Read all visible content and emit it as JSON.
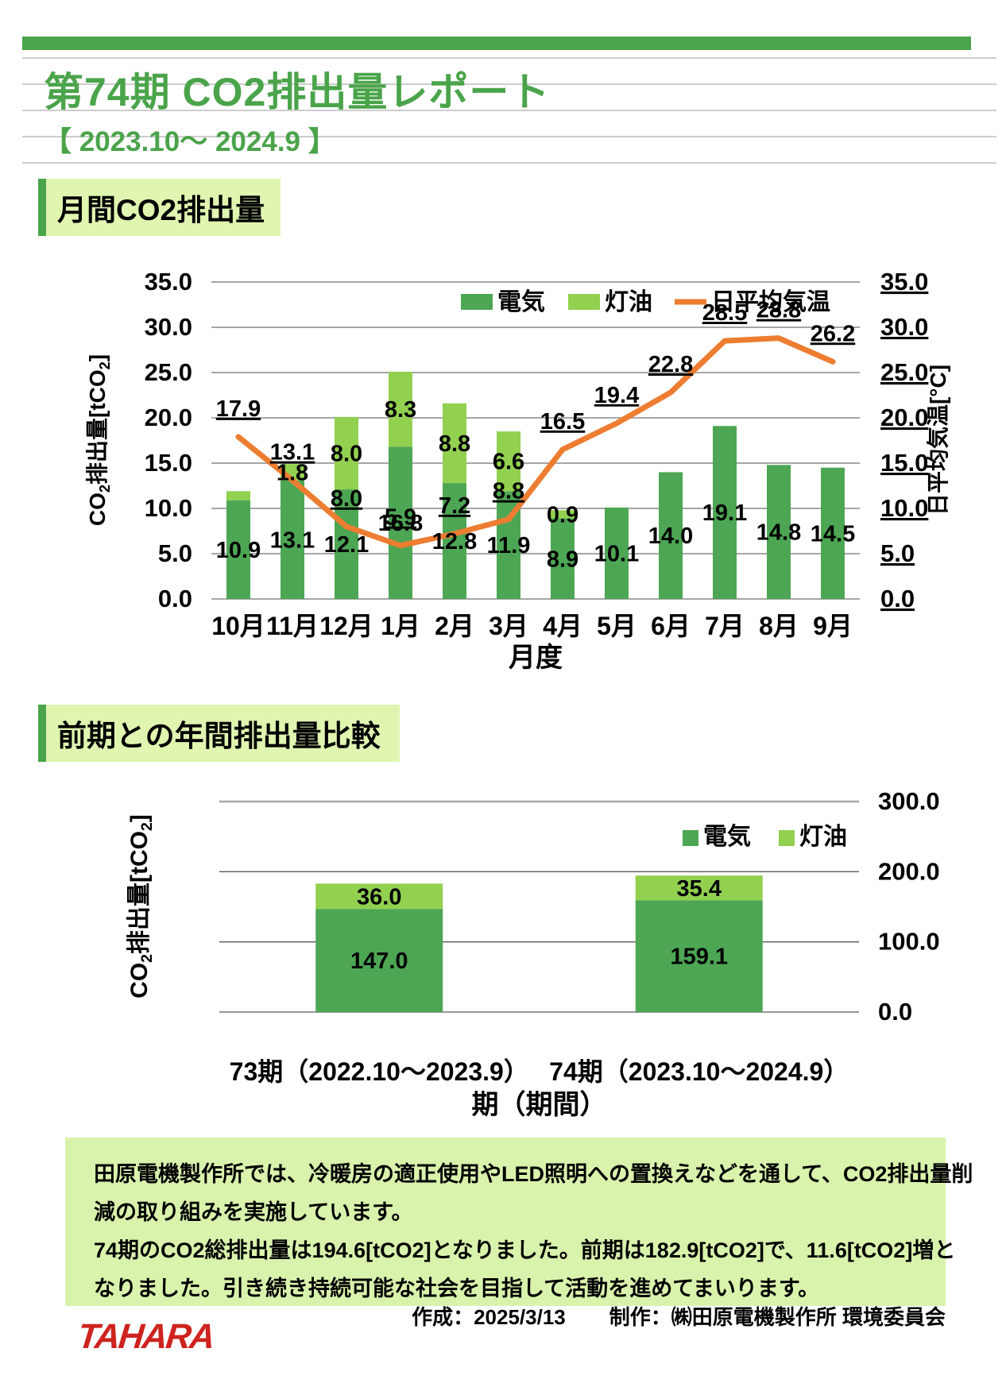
{
  "page": {
    "title": "第74期 CO2排出量レポート",
    "subtitle": "【 2023.10～ 2024.9  】"
  },
  "sections": {
    "monthly": {
      "heading": "月間CO2排出量"
    },
    "annual": {
      "heading": "前期との年間排出量比較"
    }
  },
  "colors": {
    "accent_green": "#4AA44A",
    "electricity": "#4DA654",
    "kerosene": "#92D050",
    "temperature": "#ED7D31",
    "heading_bg": "#DFF5B0",
    "note_bg": "#D9F2AC",
    "gridline": "#A6A6A6",
    "logo_red": "#CE231E"
  },
  "chart_data": [
    {
      "type": "bar+line",
      "title": "月間CO2排出量",
      "categories": [
        "10月",
        "11月",
        "12月",
        "1月",
        "2月",
        "3月",
        "4月",
        "5月",
        "6月",
        "7月",
        "8月",
        "9月"
      ],
      "series": [
        {
          "name": "電気",
          "type": "bar",
          "stack": "co2",
          "color": "#4DA654",
          "values": [
            10.9,
            13.1,
            12.1,
            16.8,
            12.8,
            11.9,
            8.9,
            10.1,
            14.0,
            19.1,
            14.8,
            14.5
          ],
          "labels": [
            "10.9",
            "13.1",
            "12.1",
            "16.8",
            "12.8",
            "11.9",
            "8.9",
            "10.1",
            "14.0",
            "19.1",
            "14.8",
            "14.5"
          ]
        },
        {
          "name": "灯油",
          "type": "bar",
          "stack": "co2",
          "color": "#92D050",
          "values": [
            1.0,
            1.8,
            8.0,
            8.3,
            8.8,
            6.6,
            0.9,
            0,
            0,
            0,
            0,
            0
          ],
          "labels": [
            "",
            "1.8",
            "8.0",
            "8.3",
            "8.8",
            "6.6",
            "0.9",
            "",
            "",
            "",
            "",
            ""
          ]
        },
        {
          "name": "日平均気温",
          "type": "line",
          "axis": "right",
          "color": "#ED7D31",
          "values": [
            17.9,
            13.1,
            8.0,
            5.9,
            7.2,
            8.8,
            16.5,
            19.4,
            22.8,
            28.5,
            28.8,
            26.2
          ],
          "labels": [
            "17.9",
            "13.1",
            "8.0",
            "5.9",
            "7.2",
            "8.8",
            "16.5",
            "19.4",
            "22.8",
            "28.5",
            "28.8",
            "26.2"
          ]
        }
      ],
      "xlabel": "月度",
      "ylabel_left": "CO2排出量[tCO2]",
      "ylabel_right": "日平均気温[°C]",
      "ylim": [
        0,
        35
      ],
      "ylim_right": [
        0,
        35
      ],
      "ytick_step": 5,
      "legend_position": "top",
      "grid": true
    },
    {
      "type": "bar",
      "title": "前期との年間排出量比較",
      "categories": [
        "73期（2022.10～2023.9）",
        "74期（2023.10～2024.9）"
      ],
      "series": [
        {
          "name": "電気",
          "stack": "co2",
          "color": "#4DA654",
          "values": [
            147.0,
            159.1
          ],
          "labels": [
            "147.0",
            "159.1"
          ]
        },
        {
          "name": "灯油",
          "stack": "co2",
          "color": "#92D050",
          "values": [
            36.0,
            35.4
          ],
          "labels": [
            "36.0",
            "35.4"
          ]
        }
      ],
      "xlabel": "期（期間）",
      "ylabel": "CO2排出量[tCO2]",
      "ylim": [
        0,
        300
      ],
      "ytick_step": 100,
      "legend_position": "top-right",
      "grid": true
    }
  ],
  "note": {
    "lines": [
      "田原電機製作所では、冷暖房の適正使用やLED照明への置換えなどを通して、CO2排出量削",
      "減の取り組みを実施しています。",
      "74期のCO2総排出量は194.6[tCO2]となりました。前期は182.9[tCO2]で、11.6[tCO2]増と",
      "なりました。引き続き持続可能な社会を目指して活動を進めてまいります。"
    ]
  },
  "footer": {
    "created": "作成：2025/3/13",
    "producer": "制作：㈱田原電機製作所 環境委員会",
    "logo": "TAHARA"
  }
}
